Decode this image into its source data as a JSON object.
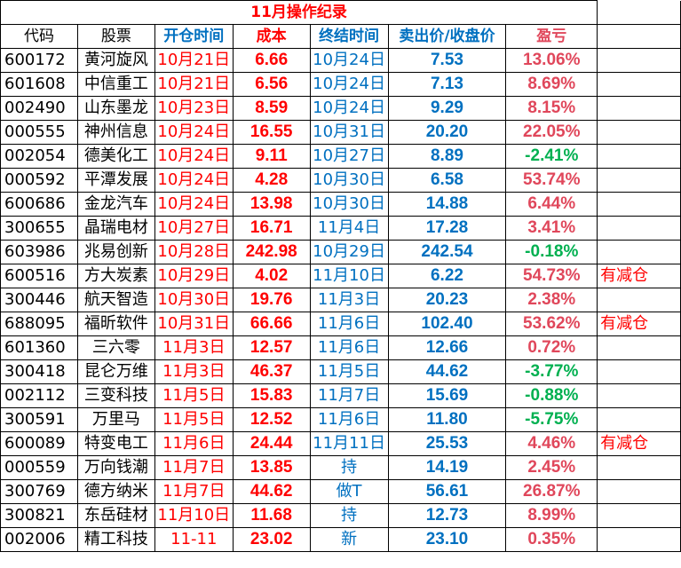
{
  "title": "11月操作纪录",
  "headers": [
    "代码",
    "股票",
    "开仓时间",
    "成本",
    "终结时间",
    "卖出价/收盘价",
    "盈亏",
    ""
  ],
  "rows": [
    {
      "code": "600172",
      "name": "黄河旋风",
      "open": "10月21日",
      "cost": "6.66",
      "close": "10月24日",
      "price": "7.53",
      "pnl": "13.06%",
      "note": ""
    },
    {
      "code": "601608",
      "name": "中信重工",
      "open": "10月21日",
      "cost": "6.56",
      "close": "10月24日",
      "price": "7.13",
      "pnl": "8.69%",
      "note": ""
    },
    {
      "code": "002490",
      "name": "山东墨龙",
      "open": "10月23日",
      "cost": "8.59",
      "close": "10月24日",
      "price": "9.29",
      "pnl": "8.15%",
      "note": ""
    },
    {
      "code": "000555",
      "name": "神州信息",
      "open": "10月24日",
      "cost": "16.55",
      "close": "10月31日",
      "price": "20.20",
      "pnl": "22.05%",
      "note": ""
    },
    {
      "code": "002054",
      "name": "德美化工",
      "open": "10月24日",
      "cost": "9.11",
      "close": "10月27日",
      "price": "8.89",
      "pnl": "-2.41%",
      "note": ""
    },
    {
      "code": "000592",
      "name": "平潭发展",
      "open": "10月24日",
      "cost": "4.28",
      "close": "10月30日",
      "price": "6.58",
      "pnl": "53.74%",
      "note": ""
    },
    {
      "code": "600686",
      "name": "金龙汽车",
      "open": "10月24日",
      "cost": "13.98",
      "close": "10月30日",
      "price": "14.88",
      "pnl": "6.44%",
      "note": ""
    },
    {
      "code": "300655",
      "name": "晶瑞电材",
      "open": "10月27日",
      "cost": "16.71",
      "close": "11月4日",
      "price": "17.28",
      "pnl": "3.41%",
      "note": ""
    },
    {
      "code": "603986",
      "name": "兆易创新",
      "open": "10月28日",
      "cost": "242.98",
      "close": "10月29日",
      "price": "242.54",
      "pnl": "-0.18%",
      "note": ""
    },
    {
      "code": "600516",
      "name": "方大炭素",
      "open": "10月29日",
      "cost": "4.02",
      "close": "11月10日",
      "price": "6.22",
      "pnl": "54.73%",
      "note": "有减仓"
    },
    {
      "code": "300446",
      "name": "航天智造",
      "open": "10月30日",
      "cost": "19.76",
      "close": "11月3日",
      "price": "20.23",
      "pnl": "2.38%",
      "note": ""
    },
    {
      "code": "688095",
      "name": "福昕软件",
      "open": "10月31日",
      "cost": "66.66",
      "close": "11月6日",
      "price": "102.40",
      "pnl": "53.62%",
      "note": "有减仓"
    },
    {
      "code": "601360",
      "name": "三六零",
      "open": "11月3日",
      "cost": "12.57",
      "close": "11月6日",
      "price": "12.66",
      "pnl": "0.72%",
      "note": ""
    },
    {
      "code": "300418",
      "name": "昆仑万维",
      "open": "11月3日",
      "cost": "46.37",
      "close": "11月5日",
      "price": "44.62",
      "pnl": "-3.77%",
      "note": ""
    },
    {
      "code": "002112",
      "name": "三变科技",
      "open": "11月5日",
      "cost": "15.83",
      "close": "11月7日",
      "price": "15.69",
      "pnl": "-0.88%",
      "note": ""
    },
    {
      "code": "300591",
      "name": "万里马",
      "open": "11月5日",
      "cost": "12.52",
      "close": "11月6日",
      "price": "11.80",
      "pnl": "-5.75%",
      "note": ""
    },
    {
      "code": "600089",
      "name": "特变电工",
      "open": "11月6日",
      "cost": "24.44",
      "close": "11月11日",
      "price": "25.53",
      "pnl": "4.46%",
      "note": "有减仓"
    },
    {
      "code": "000559",
      "name": "万向钱潮",
      "open": "11月7日",
      "cost": "13.85",
      "close": "持",
      "price": "14.19",
      "pnl": "2.45%",
      "note": ""
    },
    {
      "code": "300769",
      "name": "德方纳米",
      "open": "11月7日",
      "cost": "44.62",
      "close": "做T",
      "price": "56.61",
      "pnl": "26.87%",
      "note": ""
    },
    {
      "code": "300821",
      "name": "东岳硅材",
      "open": "11月10日",
      "cost": "11.68",
      "close": "持",
      "price": "12.73",
      "pnl": "8.99%",
      "note": ""
    },
    {
      "code": "002006",
      "name": "精工科技",
      "open": "11-11",
      "cost": "23.02",
      "close": "新",
      "price": "23.10",
      "pnl": "0.35%",
      "note": ""
    }
  ],
  "colors": {
    "text_red": "#ff0000",
    "text_blue": "#0070c0",
    "pnl_positive": "#e0475b",
    "pnl_negative": "#00b050"
  }
}
